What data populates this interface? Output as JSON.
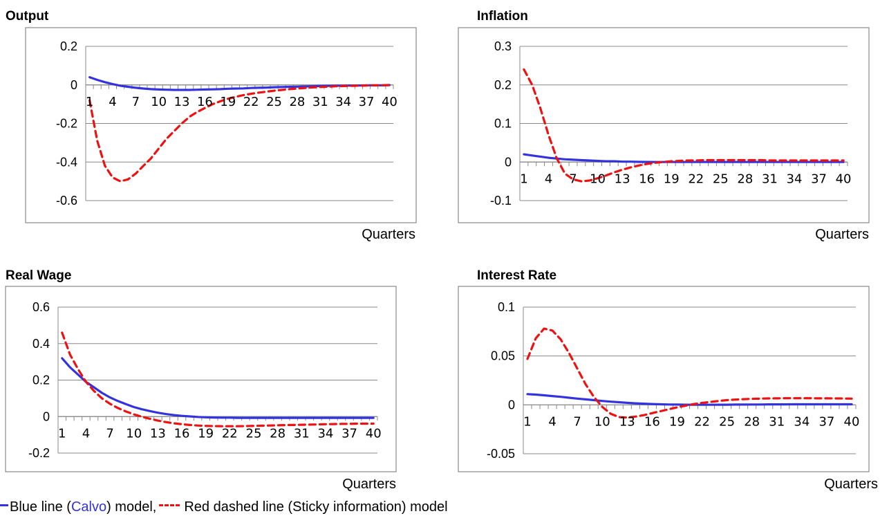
{
  "chart_data": [
    {
      "type": "line",
      "title": "Output",
      "xlabel": "Quarters",
      "ylabel": "",
      "ylim": [
        -0.6,
        0.2
      ],
      "yticks": [
        0.2,
        0,
        -0.2,
        -0.4,
        -0.6
      ],
      "ytick_labels": [
        "0.2",
        "0",
        "-0.2",
        "-0.4",
        "-0.6"
      ],
      "x": [
        1,
        2,
        3,
        4,
        5,
        6,
        7,
        8,
        9,
        10,
        11,
        12,
        13,
        14,
        15,
        16,
        17,
        18,
        19,
        20,
        21,
        22,
        23,
        24,
        25,
        26,
        27,
        28,
        29,
        30,
        31,
        32,
        33,
        34,
        35,
        36,
        37,
        38,
        39,
        40
      ],
      "xtick_labels": [
        "1",
        "4",
        "7",
        "10",
        "13",
        "16",
        "19",
        "22",
        "25",
        "28",
        "31",
        "34",
        "37",
        "40"
      ],
      "x_axis_at": 0,
      "series": [
        {
          "color": "#3333dd",
          "dash": "solid",
          "values": [
            0.04,
            0.026,
            0.014,
            0.004,
            -0.004,
            -0.01,
            -0.015,
            -0.019,
            -0.022,
            -0.024,
            -0.025,
            -0.026,
            -0.026,
            -0.026,
            -0.025,
            -0.024,
            -0.023,
            -0.022,
            -0.02,
            -0.019,
            -0.018,
            -0.016,
            -0.015,
            -0.014,
            -0.012,
            -0.011,
            -0.01,
            -0.009,
            -0.008,
            -0.007,
            -0.006,
            -0.005,
            -0.004,
            -0.004,
            -0.003,
            -0.003,
            -0.002,
            -0.002,
            -0.002,
            -0.001
          ]
        },
        {
          "color": "#ee1111",
          "dash": "dashed",
          "values": [
            -0.08,
            -0.29,
            -0.42,
            -0.48,
            -0.5,
            -0.49,
            -0.46,
            -0.42,
            -0.38,
            -0.33,
            -0.28,
            -0.24,
            -0.2,
            -0.165,
            -0.14,
            -0.12,
            -0.1,
            -0.085,
            -0.072,
            -0.062,
            -0.053,
            -0.046,
            -0.04,
            -0.035,
            -0.03,
            -0.026,
            -0.022,
            -0.019,
            -0.016,
            -0.013,
            -0.011,
            -0.009,
            -0.007,
            -0.006,
            -0.005,
            -0.004,
            -0.003,
            -0.002,
            -0.002,
            -0.001
          ]
        }
      ]
    },
    {
      "type": "line",
      "title": "Inflation",
      "xlabel": "Quarters",
      "ylabel": "",
      "ylim": [
        -0.1,
        0.3
      ],
      "yticks": [
        0.3,
        0.2,
        0.1,
        0,
        -0.1
      ],
      "ytick_labels": [
        "0.3",
        "0.2",
        "0.1",
        "0",
        "-0.1"
      ],
      "x": [
        1,
        2,
        3,
        4,
        5,
        6,
        7,
        8,
        9,
        10,
        11,
        12,
        13,
        14,
        15,
        16,
        17,
        18,
        19,
        20,
        21,
        22,
        23,
        24,
        25,
        26,
        27,
        28,
        29,
        30,
        31,
        32,
        33,
        34,
        35,
        36,
        37,
        38,
        39,
        40
      ],
      "xtick_labels": [
        "1",
        "4",
        "7",
        "10",
        "13",
        "16",
        "19",
        "22",
        "25",
        "28",
        "31",
        "34",
        "37",
        "40"
      ],
      "x_axis_at": 0,
      "series": [
        {
          "color": "#3333dd",
          "dash": "solid",
          "values": [
            0.02,
            0.017,
            0.014,
            0.011,
            0.009,
            0.007,
            0.006,
            0.005,
            0.004,
            0.003,
            0.002,
            0.002,
            0.001,
            0.001,
            0.0005,
            0.0002,
            0,
            0,
            0,
            0,
            0,
            0,
            0,
            0,
            0,
            0,
            0,
            0,
            0,
            0,
            0,
            0,
            0,
            0,
            0,
            0,
            0,
            0,
            0,
            0
          ]
        },
        {
          "color": "#ee1111",
          "dash": "dashed",
          "values": [
            0.24,
            0.2,
            0.14,
            0.07,
            0.01,
            -0.03,
            -0.045,
            -0.05,
            -0.048,
            -0.042,
            -0.035,
            -0.027,
            -0.02,
            -0.014,
            -0.009,
            -0.005,
            -0.002,
            0,
            0.002,
            0.003,
            0.004,
            0.004,
            0.005,
            0.005,
            0.005,
            0.005,
            0.005,
            0.005,
            0.005,
            0.005,
            0.004,
            0.004,
            0.004,
            0.004,
            0.004,
            0.004,
            0.004,
            0.004,
            0.004,
            0.004
          ]
        }
      ]
    },
    {
      "type": "line",
      "title": "Real Wage",
      "xlabel": "Quarters",
      "ylabel": "",
      "ylim": [
        -0.2,
        0.6
      ],
      "yticks": [
        0.6,
        0.4,
        0.2,
        0,
        -0.2
      ],
      "ytick_labels": [
        "0.6",
        "0.4",
        "0.2",
        "0",
        "-0.2"
      ],
      "x": [
        1,
        2,
        3,
        4,
        5,
        6,
        7,
        8,
        9,
        10,
        11,
        12,
        13,
        14,
        15,
        16,
        17,
        18,
        19,
        20,
        21,
        22,
        23,
        24,
        25,
        26,
        27,
        28,
        29,
        30,
        31,
        32,
        33,
        34,
        35,
        36,
        37,
        38,
        39,
        40
      ],
      "xtick_labels": [
        "1",
        "4",
        "7",
        "10",
        "13",
        "16",
        "19",
        "22",
        "25",
        "28",
        "31",
        "34",
        "37",
        "40"
      ],
      "x_axis_at": 0,
      "series": [
        {
          "color": "#3333dd",
          "dash": "solid",
          "values": [
            0.32,
            0.27,
            0.23,
            0.19,
            0.16,
            0.13,
            0.105,
            0.085,
            0.068,
            0.052,
            0.04,
            0.03,
            0.021,
            0.014,
            0.008,
            0.004,
            0.001,
            -0.002,
            -0.004,
            -0.005,
            -0.006,
            -0.006,
            -0.007,
            -0.007,
            -0.007,
            -0.007,
            -0.007,
            -0.007,
            -0.007,
            -0.007,
            -0.007,
            -0.007,
            -0.007,
            -0.007,
            -0.007,
            -0.007,
            -0.007,
            -0.007,
            -0.007,
            -0.007
          ]
        },
        {
          "color": "#ee1111",
          "dash": "dashed",
          "values": [
            0.46,
            0.34,
            0.26,
            0.19,
            0.14,
            0.1,
            0.07,
            0.047,
            0.028,
            0.012,
            -0.001,
            -0.012,
            -0.022,
            -0.03,
            -0.037,
            -0.042,
            -0.046,
            -0.049,
            -0.051,
            -0.052,
            -0.053,
            -0.053,
            -0.053,
            -0.052,
            -0.051,
            -0.05,
            -0.049,
            -0.048,
            -0.047,
            -0.046,
            -0.045,
            -0.044,
            -0.043,
            -0.042,
            -0.041,
            -0.04,
            -0.04,
            -0.039,
            -0.039,
            -0.039
          ]
        }
      ]
    },
    {
      "type": "line",
      "title": "Interest Rate",
      "xlabel": "Quarters",
      "ylabel": "",
      "ylim": [
        -0.05,
        0.1
      ],
      "yticks": [
        0.1,
        0.05,
        0,
        -0.05
      ],
      "ytick_labels": [
        "0.1",
        "0.05",
        "0",
        "-0.05"
      ],
      "x": [
        1,
        2,
        3,
        4,
        5,
        6,
        7,
        8,
        9,
        10,
        11,
        12,
        13,
        14,
        15,
        16,
        17,
        18,
        19,
        20,
        21,
        22,
        23,
        24,
        25,
        26,
        27,
        28,
        29,
        30,
        31,
        32,
        33,
        34,
        35,
        36,
        37,
        38,
        39,
        40
      ],
      "xtick_labels": [
        "1",
        "4",
        "7",
        "10",
        "13",
        "16",
        "19",
        "22",
        "25",
        "28",
        "31",
        "34",
        "37",
        "40"
      ],
      "x_axis_at": 0,
      "series": [
        {
          "color": "#3333dd",
          "dash": "solid",
          "values": [
            0.011,
            0.0105,
            0.0098,
            0.009,
            0.0082,
            0.0073,
            0.0064,
            0.0056,
            0.0048,
            0.004,
            0.0033,
            0.0027,
            0.0021,
            0.0016,
            0.0012,
            0.0009,
            0.0006,
            0.0004,
            0.0003,
            0.0002,
            0.0001,
            0.0001,
            0.0001,
            0.0002,
            0.0002,
            0.0003,
            0.0003,
            0.0004,
            0.0004,
            0.0005,
            0.0005,
            0.0005,
            0.0006,
            0.0006,
            0.0006,
            0.0006,
            0.0006,
            0.0006,
            0.0006,
            0.0006
          ]
        },
        {
          "color": "#ee1111",
          "dash": "dashed",
          "values": [
            0.047,
            0.068,
            0.078,
            0.076,
            0.067,
            0.053,
            0.037,
            0.021,
            0.008,
            -0.002,
            -0.009,
            -0.0125,
            -0.013,
            -0.012,
            -0.0105,
            -0.0085,
            -0.0065,
            -0.0045,
            -0.0025,
            -0.0008,
            0.0008,
            0.002,
            0.003,
            0.004,
            0.0048,
            0.0054,
            0.0058,
            0.0062,
            0.0064,
            0.0066,
            0.0067,
            0.0068,
            0.0068,
            0.0068,
            0.0068,
            0.0067,
            0.0067,
            0.0066,
            0.0065,
            0.0064
          ]
        }
      ]
    }
  ],
  "caption": {
    "prefix": "Blue line (",
    "calvo": "Calvo",
    "middle": ") model,",
    "suffix": " Red dashed line (Sticky information) model"
  }
}
